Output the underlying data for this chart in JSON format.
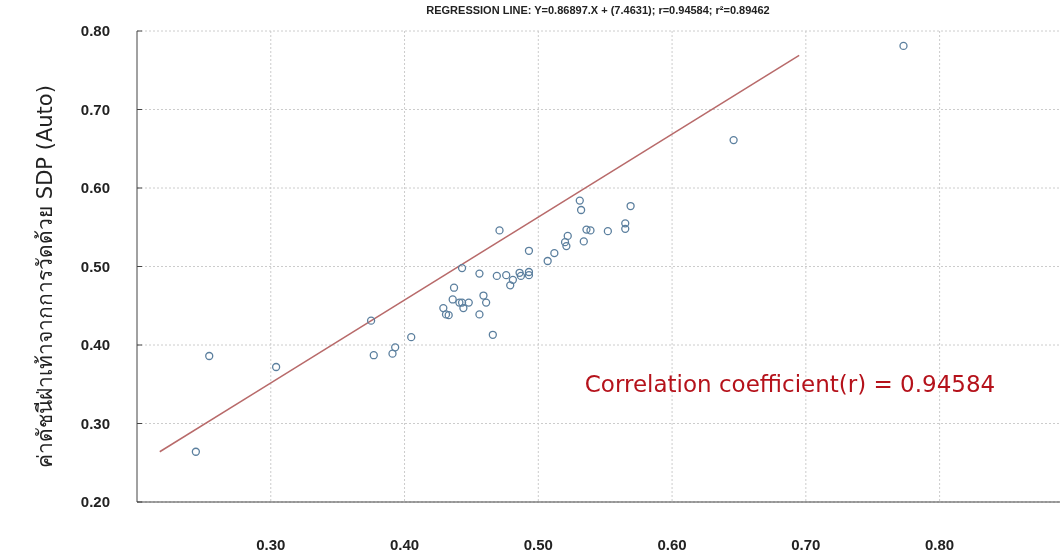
{
  "chart_data": {
    "type": "scatter",
    "title": "REGRESSION LINE: Y=0.86897.X + (7.4631); r=0.94584; r²=0.89462",
    "ylabel": "ค่าดัชนีฝ่าเท้าจากการวัดด้วย SDP (Auto)",
    "annotations": [
      "Correlation coefficient(r) = 0.94584"
    ],
    "xlim": [
      0.2,
      0.89
    ],
    "ylim": [
      0.2,
      0.8
    ],
    "xticks": [
      {
        "value": 0.3,
        "label": "0.30"
      },
      {
        "value": 0.4,
        "label": "0.40"
      },
      {
        "value": 0.5,
        "label": "0.50"
      },
      {
        "value": 0.6,
        "label": "0.60"
      },
      {
        "value": 0.7,
        "label": "0.70"
      },
      {
        "value": 0.8,
        "label": "0.80"
      }
    ],
    "yticks": [
      {
        "value": 0.2,
        "label": "0.20"
      },
      {
        "value": 0.3,
        "label": "0.30"
      },
      {
        "value": 0.4,
        "label": "0.40"
      },
      {
        "value": 0.5,
        "label": "0.50"
      },
      {
        "value": 0.6,
        "label": "0.60"
      },
      {
        "value": 0.7,
        "label": "0.70"
      },
      {
        "value": 0.8,
        "label": "0.80"
      }
    ],
    "grid": true,
    "series": [
      {
        "type": "line",
        "color": "#b86a6a",
        "marker": "none",
        "x": [
          0.217,
          0.695
        ],
        "values": [
          0.264,
          0.769
        ]
      },
      {
        "type": "scatter",
        "color": "#5b7f9e",
        "marker": "circle",
        "x": [
          0.244,
          0.254,
          0.304,
          0.375,
          0.377,
          0.391,
          0.393,
          0.405,
          0.429,
          0.431,
          0.433,
          0.436,
          0.437,
          0.443,
          0.441,
          0.443,
          0.444,
          0.448,
          0.456,
          0.456,
          0.459,
          0.461,
          0.466,
          0.469,
          0.476,
          0.481,
          0.479,
          0.487,
          0.486,
          0.493,
          0.493,
          0.471,
          0.493,
          0.512,
          0.507,
          0.52,
          0.522,
          0.521,
          0.531,
          0.532,
          0.534,
          0.536,
          0.539,
          0.552,
          0.565,
          0.565,
          0.569,
          0.646,
          0.773
        ],
        "values": [
          0.264,
          0.386,
          0.372,
          0.431,
          0.387,
          0.389,
          0.397,
          0.41,
          0.447,
          0.439,
          0.438,
          0.458,
          0.473,
          0.498,
          0.454,
          0.454,
          0.447,
          0.454,
          0.439,
          0.491,
          0.463,
          0.454,
          0.413,
          0.488,
          0.489,
          0.483,
          0.476,
          0.488,
          0.492,
          0.493,
          0.489,
          0.546,
          0.52,
          0.517,
          0.507,
          0.531,
          0.539,
          0.526,
          0.584,
          0.572,
          0.532,
          0.547,
          0.546,
          0.545,
          0.555,
          0.548,
          0.577,
          0.661,
          0.781
        ]
      }
    ]
  }
}
